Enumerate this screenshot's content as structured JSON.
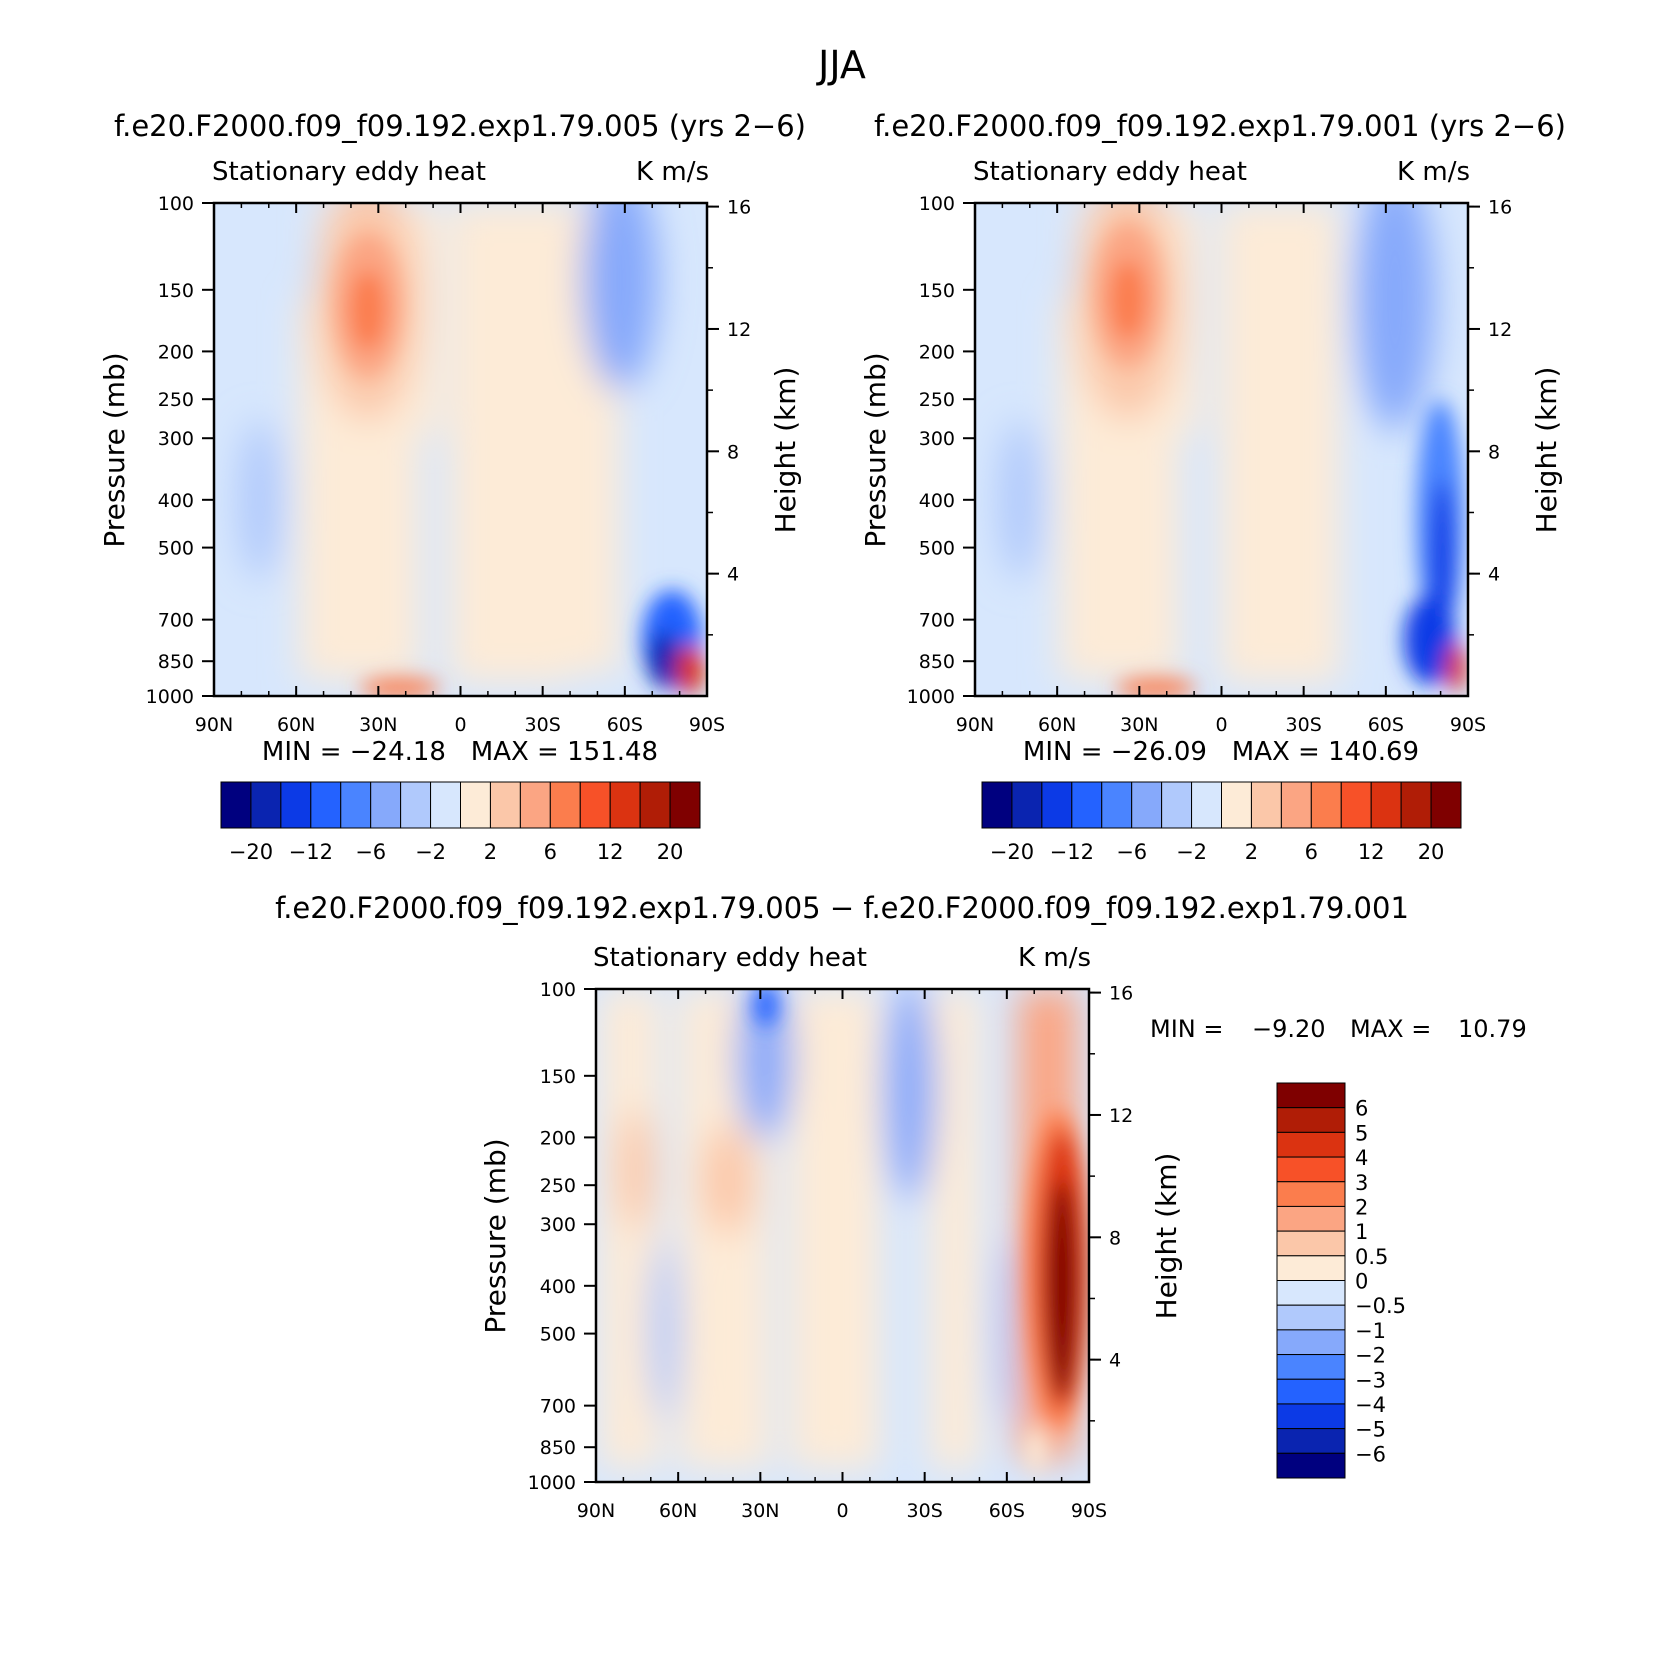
{
  "page": {
    "title": "JJA"
  },
  "chart_data": [
    {
      "type": "heatmap",
      "title": "f.e20.F2000.f09_f09.192.exp1.79.005 (yrs 2−6)",
      "subtitle_left": "Stationary eddy heat",
      "subtitle_right": "K m/s",
      "ylabel": "Pressure (mb)",
      "y2label": "Height (km)",
      "xticks": [
        "90N",
        "60N",
        "30N",
        "0",
        "30S",
        "60S",
        "90S"
      ],
      "yticks": [
        "100",
        "150",
        "200",
        "250",
        "300",
        "400",
        "500",
        "700",
        "850",
        "1000"
      ],
      "y2ticks": [
        "16",
        "12",
        "8",
        "4"
      ],
      "xlim": [
        90,
        -90
      ],
      "ylim": [
        1000,
        100
      ],
      "y_scale": "log",
      "stats": "MIN = −24.18   MAX = 151.48",
      "features": [
        {
          "lat": 33,
          "p": 170,
          "value": 9
        },
        {
          "lat": -77,
          "p": 780,
          "value": -14
        },
        {
          "lat": -84,
          "p": 960,
          "value": 20
        },
        {
          "lat": -62,
          "p": 150,
          "value": -4
        }
      ],
      "colorbar": {
        "orientation": "horizontal",
        "labels": [
          "−20",
          "−12",
          "−6",
          "−2",
          "2",
          "6",
          "12",
          "20"
        ],
        "colors": [
          "#00007f",
          "#0a24b0",
          "#0c3ae6",
          "#2462ff",
          "#4a84ff",
          "#86a9fb",
          "#b0c9fc",
          "#d7e7fd",
          "#fdebd7",
          "#fbc7a9",
          "#fba583",
          "#fb7d4d",
          "#f75128",
          "#db3311",
          "#b01d06",
          "#7f0000"
        ]
      }
    },
    {
      "type": "heatmap",
      "title": "f.e20.F2000.f09_f09.192.exp1.79.001 (yrs 2−6)",
      "subtitle_left": "Stationary eddy heat",
      "subtitle_right": "K m/s",
      "ylabel": "Pressure (mb)",
      "y2label": "Height (km)",
      "xticks": [
        "90N",
        "60N",
        "30N",
        "0",
        "30S",
        "60S",
        "90S"
      ],
      "yticks": [
        "100",
        "150",
        "200",
        "250",
        "300",
        "400",
        "500",
        "700",
        "850",
        "1000"
      ],
      "y2ticks": [
        "16",
        "12",
        "8",
        "4"
      ],
      "xlim": [
        90,
        -90
      ],
      "ylim": [
        1000,
        100
      ],
      "y_scale": "log",
      "stats": "MIN = −26.09   MAX = 140.69",
      "features": [
        {
          "lat": 33,
          "p": 165,
          "value": 8
        },
        {
          "lat": -82,
          "p": 500,
          "value": -12
        },
        {
          "lat": -78,
          "p": 820,
          "value": -16
        },
        {
          "lat": -84,
          "p": 950,
          "value": 16
        },
        {
          "lat": -62,
          "p": 140,
          "value": -5
        }
      ],
      "colorbar": {
        "orientation": "horizontal",
        "labels": [
          "−20",
          "−12",
          "−6",
          "−2",
          "2",
          "6",
          "12",
          "20"
        ],
        "colors": [
          "#00007f",
          "#0a24b0",
          "#0c3ae6",
          "#2462ff",
          "#4a84ff",
          "#86a9fb",
          "#b0c9fc",
          "#d7e7fd",
          "#fdebd7",
          "#fbc7a9",
          "#fba583",
          "#fb7d4d",
          "#f75128",
          "#db3311",
          "#b01d06",
          "#7f0000"
        ]
      }
    },
    {
      "type": "heatmap",
      "title": "f.e20.F2000.f09_f09.192.exp1.79.005 − f.e20.F2000.f09_f09.192.exp1.79.001",
      "subtitle_left": "Stationary eddy heat",
      "subtitle_right": "K m/s",
      "ylabel": "Pressure (mb)",
      "y2label": "Height (km)",
      "xticks": [
        "90N",
        "60N",
        "30N",
        "0",
        "30S",
        "60S",
        "90S"
      ],
      "yticks": [
        "100",
        "150",
        "200",
        "250",
        "300",
        "400",
        "500",
        "700",
        "850",
        "1000"
      ],
      "y2ticks": [
        "16",
        "12",
        "8",
        "4"
      ],
      "xlim": [
        90,
        -90
      ],
      "ylim": [
        1000,
        100
      ],
      "y_scale": "log",
      "stats_min": "MIN =",
      "stats_min_value": "−9.20",
      "stats_max": "MAX =",
      "stats_max_value": "10.79",
      "features": [
        {
          "lat": -82,
          "p": 450,
          "value": 7
        },
        {
          "lat": -80,
          "p": 300,
          "value": 4
        },
        {
          "lat": -80,
          "p": 160,
          "value": 2
        },
        {
          "lat": 30,
          "p": 110,
          "value": -2
        },
        {
          "lat": -28,
          "p": 170,
          "value": -1.5
        },
        {
          "lat": 45,
          "p": 450,
          "value": 1.2
        },
        {
          "lat": 70,
          "p": 260,
          "value": 1
        }
      ],
      "colorbar": {
        "orientation": "vertical",
        "labels": [
          "6",
          "5",
          "4",
          "3",
          "2",
          "1",
          "0.5",
          "0",
          "−0.5",
          "−1",
          "−2",
          "−3",
          "−4",
          "−5",
          "−6"
        ],
        "colors": [
          "#7f0000",
          "#b01d06",
          "#db3311",
          "#f75128",
          "#fb7d4d",
          "#fba583",
          "#fbc7a9",
          "#fdebd7",
          "#d7e7fd",
          "#b0c9fc",
          "#86a9fb",
          "#4a84ff",
          "#2462ff",
          "#0c3ae6",
          "#0a24b0",
          "#00007f"
        ]
      }
    }
  ]
}
